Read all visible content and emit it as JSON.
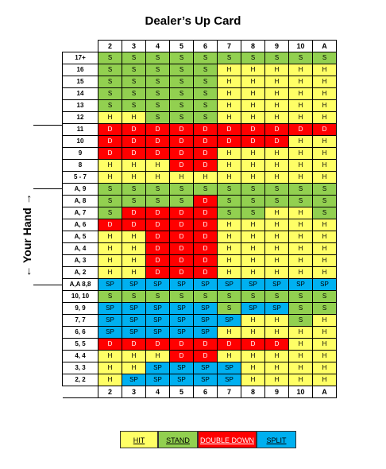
{
  "title": "Dealer’s Up Card",
  "side_label": "← Your Hand →",
  "columns": [
    "2",
    "3",
    "4",
    "5",
    "6",
    "7",
    "8",
    "9",
    "10",
    "A"
  ],
  "rows": [
    {
      "hand": "17+",
      "actions": [
        "S",
        "S",
        "S",
        "S",
        "S",
        "S",
        "S",
        "S",
        "S",
        "S"
      ]
    },
    {
      "hand": "16",
      "actions": [
        "S",
        "S",
        "S",
        "S",
        "S",
        "H",
        "H",
        "H",
        "H",
        "H"
      ]
    },
    {
      "hand": "15",
      "actions": [
        "S",
        "S",
        "S",
        "S",
        "S",
        "H",
        "H",
        "H",
        "H",
        "H"
      ]
    },
    {
      "hand": "14",
      "actions": [
        "S",
        "S",
        "S",
        "S",
        "S",
        "H",
        "H",
        "H",
        "H",
        "H"
      ]
    },
    {
      "hand": "13",
      "actions": [
        "S",
        "S",
        "S",
        "S",
        "S",
        "H",
        "H",
        "H",
        "H",
        "H"
      ]
    },
    {
      "hand": "12",
      "actions": [
        "H",
        "H",
        "S",
        "S",
        "S",
        "H",
        "H",
        "H",
        "H",
        "H"
      ]
    },
    {
      "hand": "11",
      "actions": [
        "D",
        "D",
        "D",
        "D",
        "D",
        "D",
        "D",
        "D",
        "D",
        "D"
      ]
    },
    {
      "hand": "10",
      "actions": [
        "D",
        "D",
        "D",
        "D",
        "D",
        "D",
        "D",
        "D",
        "H",
        "H"
      ]
    },
    {
      "hand": "9",
      "actions": [
        "D",
        "D",
        "D",
        "D",
        "D",
        "H",
        "H",
        "H",
        "H",
        "H"
      ]
    },
    {
      "hand": "8",
      "actions": [
        "H",
        "H",
        "H",
        "D",
        "D",
        "H",
        "H",
        "H",
        "H",
        "H"
      ]
    },
    {
      "hand": "5 - 7",
      "actions": [
        "H",
        "H",
        "H",
        "H",
        "H",
        "H",
        "H",
        "H",
        "H",
        "H"
      ]
    },
    {
      "hand": "A, 9",
      "actions": [
        "S",
        "S",
        "S",
        "S",
        "S",
        "S",
        "S",
        "S",
        "S",
        "S"
      ]
    },
    {
      "hand": "A, 8",
      "actions": [
        "S",
        "S",
        "S",
        "S",
        "D",
        "S",
        "S",
        "S",
        "S",
        "S"
      ]
    },
    {
      "hand": "A, 7",
      "actions": [
        "S",
        "D",
        "D",
        "D",
        "D",
        "S",
        "S",
        "H",
        "H",
        "S"
      ]
    },
    {
      "hand": "A, 6",
      "actions": [
        "D",
        "D",
        "D",
        "D",
        "D",
        "H",
        "H",
        "H",
        "H",
        "H"
      ]
    },
    {
      "hand": "A, 5",
      "actions": [
        "H",
        "H",
        "D",
        "D",
        "D",
        "H",
        "H",
        "H",
        "H",
        "H"
      ]
    },
    {
      "hand": "A, 4",
      "actions": [
        "H",
        "H",
        "D",
        "D",
        "D",
        "H",
        "H",
        "H",
        "H",
        "H"
      ]
    },
    {
      "hand": "A, 3",
      "actions": [
        "H",
        "H",
        "D",
        "D",
        "D",
        "H",
        "H",
        "H",
        "H",
        "H"
      ]
    },
    {
      "hand": "A, 2",
      "actions": [
        "H",
        "H",
        "D",
        "D",
        "D",
        "H",
        "H",
        "H",
        "H",
        "H"
      ]
    },
    {
      "hand": "A,A 8,8",
      "actions": [
        "SP",
        "SP",
        "SP",
        "SP",
        "SP",
        "SP",
        "SP",
        "SP",
        "SP",
        "SP"
      ]
    },
    {
      "hand": "10, 10",
      "actions": [
        "S",
        "S",
        "S",
        "S",
        "S",
        "S",
        "S",
        "S",
        "S",
        "S"
      ]
    },
    {
      "hand": "9, 9",
      "actions": [
        "SP",
        "SP",
        "SP",
        "SP",
        "SP",
        "S",
        "SP",
        "SP",
        "S",
        "S"
      ]
    },
    {
      "hand": "7, 7",
      "actions": [
        "SP",
        "SP",
        "SP",
        "SP",
        "SP",
        "SP",
        "H",
        "H",
        "S",
        "H"
      ]
    },
    {
      "hand": "6, 6",
      "actions": [
        "SP",
        "SP",
        "SP",
        "SP",
        "SP",
        "H",
        "H",
        "H",
        "H",
        "H"
      ]
    },
    {
      "hand": "5, 5",
      "actions": [
        "D",
        "D",
        "D",
        "D",
        "D",
        "D",
        "D",
        "D",
        "H",
        "H"
      ]
    },
    {
      "hand": "4, 4",
      "actions": [
        "H",
        "H",
        "H",
        "D",
        "D",
        "H",
        "H",
        "H",
        "H",
        "H"
      ]
    },
    {
      "hand": "3, 3",
      "actions": [
        "H",
        "H",
        "SP",
        "SP",
        "SP",
        "SP",
        "H",
        "H",
        "H",
        "H"
      ]
    },
    {
      "hand": "2, 2",
      "actions": [
        "H",
        "SP",
        "SP",
        "SP",
        "SP",
        "SP",
        "H",
        "H",
        "H",
        "H"
      ]
    }
  ],
  "legend": [
    {
      "code": "H",
      "label": "HIT",
      "color": "#ffff66"
    },
    {
      "code": "S",
      "label": "STAND",
      "color": "#92d050"
    },
    {
      "code": "D",
      "label": "DOUBLE DOWN",
      "color": "#ff0000"
    },
    {
      "code": "SP",
      "label": "SPLIT",
      "color": "#00b0f0"
    }
  ]
}
